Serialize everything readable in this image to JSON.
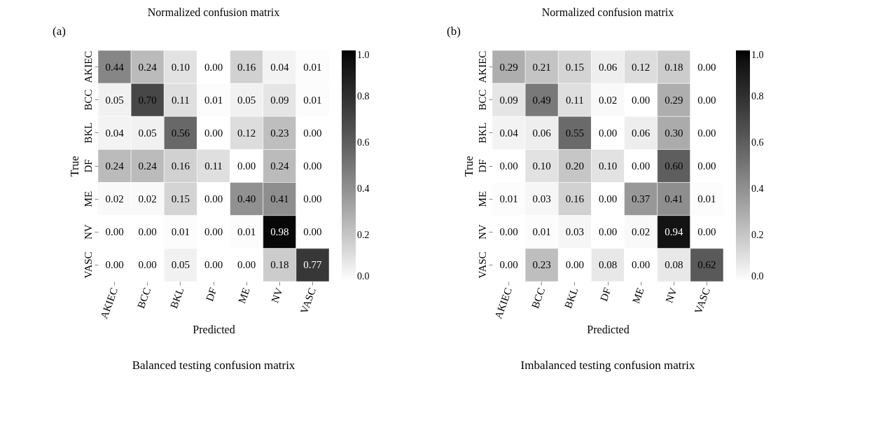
{
  "chart_data": [
    {
      "type": "heatmap",
      "title": "Normalized confusion matrix",
      "xlabel": "Predicted",
      "ylabel": "True",
      "annotations": [
        "(a)",
        "Balanced testing confusion matrix"
      ],
      "categories": [
        "AKIEC",
        "BCC",
        "BKL",
        "DF",
        "ME",
        "NV",
        "VASC"
      ],
      "y_categories": [
        "AKIEC",
        "BCC",
        "BKL",
        "DF",
        "ME",
        "NV",
        "VASC"
      ],
      "cells": [
        [
          0.44,
          0.24,
          0.1,
          0.0,
          0.16,
          0.04,
          0.01
        ],
        [
          0.05,
          0.7,
          0.11,
          0.01,
          0.05,
          0.09,
          0.01
        ],
        [
          0.04,
          0.05,
          0.56,
          0.0,
          0.12,
          0.23,
          0.0
        ],
        [
          0.24,
          0.24,
          0.16,
          0.11,
          0.0,
          0.24,
          0.0
        ],
        [
          0.02,
          0.02,
          0.15,
          0.0,
          0.4,
          0.41,
          0.0
        ],
        [
          0.0,
          0.0,
          0.01,
          0.0,
          0.01,
          0.98,
          0.0
        ],
        [
          0.0,
          0.0,
          0.05,
          0.0,
          0.0,
          0.18,
          0.77
        ]
      ],
      "cell_labels": [
        [
          "0.44",
          "0.24",
          "0.10",
          "0.00",
          "0.16",
          "0.04",
          "0.01"
        ],
        [
          "0.05",
          "0.70",
          "0.11",
          "0.01",
          "0.05",
          "0.09",
          "0.01"
        ],
        [
          "0.04",
          "0.05",
          "0.56",
          "0.00",
          "0.12",
          "0.23",
          "0.00"
        ],
        [
          "0.24",
          "0.24",
          "0.16",
          "0.11",
          "0.00",
          "0.24",
          "0.00"
        ],
        [
          "0.02",
          "0.02",
          "0.15",
          "0.00",
          "0.40",
          "0.41",
          "0.00"
        ],
        [
          "0.00",
          "0.00",
          "0.01",
          "0.00",
          "0.01",
          "0.98",
          "0.00"
        ],
        [
          "0.00",
          "0.00",
          "0.05",
          "0.00",
          "0.00",
          "0.18",
          "0.77"
        ]
      ],
      "clim": [
        0,
        1
      ],
      "cticks": [
        {
          "value": 0,
          "label": "0.0"
        },
        {
          "value": 0.2,
          "label": "0.2"
        },
        {
          "value": 0.4,
          "label": "0.4"
        },
        {
          "value": 0.6,
          "label": "0.6"
        },
        {
          "value": 0.8,
          "label": "0.8"
        },
        {
          "value": 1,
          "label": "1.0"
        }
      ],
      "data_labels": true
    },
    {
      "type": "heatmap",
      "title": "Normalized confusion matrix",
      "xlabel": "Predicted",
      "ylabel": "True",
      "annotations": [
        "(b)",
        "Imbalanced testing confusion matrix"
      ],
      "categories": [
        "AKIEC",
        "BCC",
        "BKL",
        "DF",
        "ME",
        "NV",
        "VASC"
      ],
      "y_categories": [
        "AKIEC",
        "BCC",
        "BKL",
        "DF",
        "ME",
        "NV",
        "VASC"
      ],
      "cells": [
        [
          0.29,
          0.21,
          0.15,
          0.06,
          0.12,
          0.18,
          0.0
        ],
        [
          0.09,
          0.49,
          0.11,
          0.02,
          0.0,
          0.29,
          0.0
        ],
        [
          0.04,
          0.06,
          0.55,
          0.0,
          0.06,
          0.3,
          0.0
        ],
        [
          0.0,
          0.1,
          0.2,
          0.1,
          0.0,
          0.6,
          0.0
        ],
        [
          0.01,
          0.03,
          0.16,
          0.0,
          0.37,
          0.41,
          0.01
        ],
        [
          0.0,
          0.01,
          0.03,
          0.0,
          0.02,
          0.94,
          0.0
        ],
        [
          0.0,
          0.23,
          0.0,
          0.08,
          0.0,
          0.08,
          0.62
        ]
      ],
      "cell_labels": [
        [
          "0.29",
          "0.21",
          "0.15",
          "0.06",
          "0.12",
          "0.18",
          "0.00"
        ],
        [
          "0.09",
          "0.49",
          "0.11",
          "0.02",
          "0.00",
          "0.29",
          "0.00"
        ],
        [
          "0.04",
          "0.06",
          "0.55",
          "0.00",
          "0.06",
          "0.30",
          "0.00"
        ],
        [
          "0.00",
          "0.10",
          "0.20",
          "0.10",
          "0.00",
          "0.60",
          "0.00"
        ],
        [
          "0.01",
          "0.03",
          "0.16",
          "0.00",
          "0.37",
          "0.41",
          "0.01"
        ],
        [
          "0.00",
          "0.01",
          "0.03",
          "0.00",
          "0.02",
          "0.94",
          "0.00"
        ],
        [
          "0.00",
          "0.23",
          "0.00",
          "0.08",
          "0.00",
          "0.08",
          "0.62"
        ]
      ],
      "clim": [
        0,
        1
      ],
      "cticks": [
        {
          "value": 0,
          "label": "0.0"
        },
        {
          "value": 0.2,
          "label": "0.2"
        },
        {
          "value": 0.4,
          "label": "0.4"
        },
        {
          "value": 0.6,
          "label": "0.6"
        },
        {
          "value": 0.8,
          "label": "0.8"
        },
        {
          "value": 1,
          "label": "1.0"
        }
      ],
      "data_labels": true
    }
  ]
}
